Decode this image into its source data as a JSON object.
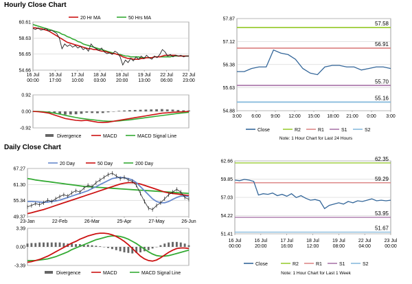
{
  "sections": {
    "hourly_title": "Hourly Close Chart",
    "daily_title": "Daily Close Chart"
  },
  "colors": {
    "close": "#2f4f6f",
    "ma_short": "#cc1111",
    "ma_long": "#33aa33",
    "macd": "#cc1111",
    "signal": "#33aa33",
    "divergence": "#666666",
    "r2": "#99cc33",
    "r1": "#dd8888",
    "s1": "#aa77aa",
    "s2": "#88bbdd",
    "line_blue": "#336699",
    "ma_mid": "#6688cc",
    "grid": "#d0d0d0",
    "frame": "#888888"
  },
  "chart_data": [
    {
      "id": "hourly_price",
      "type": "line",
      "legend": [
        "20 Hr MA",
        "50 Hrs MA"
      ],
      "y_ticks": [
        "60.61",
        "58.63",
        "56.65",
        "54.66"
      ],
      "ylim": [
        54.66,
        60.61
      ],
      "x_ticks": [
        "16 Jul\n00:00",
        "16 Jul\n17:00",
        "17 Jul\n10:00",
        "18 Jul\n03:00",
        "18 Jul\n20:00",
        "19 Jul\n13:00",
        "22 Jul\n06:00",
        "22 Jul\n23:00"
      ],
      "series": [
        {
          "name": "Close",
          "values": [
            59.8,
            59.7,
            59.9,
            59.6,
            59.7,
            59.8,
            59.5,
            59.6,
            59.4,
            59.2,
            58.6,
            57.3,
            57.9,
            57.6,
            57.8,
            57.5,
            57.7,
            57.4,
            57.6,
            57.2,
            57.4,
            57.0,
            57.9,
            57.5,
            57.3,
            57.1,
            57.4,
            56.9,
            56.7,
            56.8,
            56.6,
            57.0,
            56.8,
            56.3,
            55.3,
            55.9,
            55.6,
            56.1,
            55.8,
            56.3,
            56.0,
            56.4,
            56.1,
            56.5,
            56.2,
            56.0,
            56.4,
            56.2,
            56.6,
            57.2,
            56.9,
            56.4,
            56.6,
            56.3,
            56.5,
            56.4,
            56.5,
            56.3,
            56.4,
            56.4
          ]
        },
        {
          "name": "20 Hr MA",
          "values": [
            59.9,
            59.9,
            59.8,
            59.8,
            59.7,
            59.6,
            59.5,
            59.3,
            59.1,
            58.9,
            58.7,
            58.5,
            58.3,
            58.1,
            58.0,
            57.9,
            57.8,
            57.7,
            57.6,
            57.5,
            57.4,
            57.3,
            57.3,
            57.2,
            57.2,
            57.1,
            57.0,
            57.0,
            56.9,
            56.8,
            56.7,
            56.7,
            56.6,
            56.5,
            56.3,
            56.2,
            56.1,
            56.1,
            56.0,
            56.0,
            56.0,
            56.1,
            56.1,
            56.2,
            56.2,
            56.2,
            56.3,
            56.3,
            56.3,
            56.4,
            56.5,
            56.5,
            56.5,
            56.5,
            56.5,
            56.4,
            56.4,
            56.4,
            56.4,
            56.4
          ]
        },
        {
          "name": "50 Hrs MA",
          "values": [
            60.3,
            60.2,
            60.1,
            60.0,
            59.9,
            59.8,
            59.7,
            59.6,
            59.5,
            59.4,
            59.3,
            59.1,
            59.0,
            58.8,
            58.7,
            58.5,
            58.4,
            58.2,
            58.1,
            57.9,
            57.8,
            57.7,
            57.6,
            57.5,
            57.4,
            57.3,
            57.2,
            57.1,
            57.0,
            56.9,
            56.8,
            56.7,
            56.6,
            56.6,
            56.5,
            56.4,
            56.4,
            56.3,
            56.3,
            56.3,
            56.3,
            56.2,
            56.2,
            56.2,
            56.2,
            56.2,
            56.3,
            56.3,
            56.3,
            56.3,
            56.3,
            56.3,
            56.3,
            56.4,
            56.4,
            56.4,
            56.4,
            56.4,
            56.4,
            56.4
          ]
        }
      ]
    },
    {
      "id": "hourly_macd",
      "type": "line",
      "legend": [
        "Divergence",
        "MACD",
        "MACD Signal Line"
      ],
      "y_ticks": [
        "0.92",
        "0.00",
        "-0.92"
      ],
      "ylim": [
        -0.92,
        0.92
      ],
      "series": [
        {
          "name": "MACD",
          "values": [
            0.0,
            -0.02,
            -0.05,
            -0.1,
            -0.2,
            -0.3,
            -0.4,
            -0.45,
            -0.5,
            -0.52,
            -0.5,
            -0.55,
            -0.6,
            -0.62,
            -0.6,
            -0.55,
            -0.5,
            -0.45,
            -0.4,
            -0.35,
            -0.3,
            -0.25,
            -0.2,
            -0.15,
            -0.1,
            -0.08,
            -0.05,
            -0.03,
            -0.02,
            0.0
          ]
        },
        {
          "name": "MACD Signal Line",
          "values": [
            0.0,
            0.0,
            -0.02,
            -0.05,
            -0.1,
            -0.15,
            -0.22,
            -0.28,
            -0.34,
            -0.39,
            -0.43,
            -0.46,
            -0.5,
            -0.53,
            -0.55,
            -0.55,
            -0.53,
            -0.5,
            -0.47,
            -0.43,
            -0.39,
            -0.35,
            -0.31,
            -0.27,
            -0.23,
            -0.19,
            -0.15,
            -0.11,
            -0.08,
            -0.05
          ]
        },
        {
          "name": "Divergence",
          "values": [
            0.0,
            -0.02,
            -0.03,
            -0.05,
            -0.1,
            -0.15,
            -0.18,
            -0.17,
            -0.16,
            -0.13,
            -0.07,
            -0.09,
            -0.1,
            -0.09,
            -0.05,
            0.0,
            0.03,
            0.05,
            0.07,
            0.08,
            0.09,
            0.1,
            0.11,
            0.12,
            0.13,
            0.11,
            0.1,
            0.08,
            0.06,
            0.05
          ]
        }
      ]
    },
    {
      "id": "hourly_pivot",
      "type": "line",
      "y_ticks": [
        "57.87",
        "57.12",
        "56.38",
        "55.63",
        "54.88"
      ],
      "ylim": [
        54.88,
        57.87
      ],
      "x_ticks": [
        "3:00",
        "6:00",
        "9:00",
        "12:00",
        "15:00",
        "18:00",
        "21:00",
        "0:00",
        "3:00"
      ],
      "levels": [
        {
          "name": "R2",
          "value": 57.58,
          "label": "57.58"
        },
        {
          "name": "R1",
          "value": 56.91,
          "label": "56.91"
        },
        {
          "name": "S1",
          "value": 55.7,
          "label": "55.70"
        },
        {
          "name": "S2",
          "value": 55.16,
          "label": "55.16"
        }
      ],
      "series": [
        {
          "name": "Close",
          "values": [
            56.15,
            56.15,
            56.25,
            56.3,
            56.3,
            56.85,
            56.75,
            56.7,
            56.55,
            56.25,
            56.1,
            56.05,
            56.3,
            56.35,
            56.35,
            56.3,
            56.3,
            56.2,
            56.25,
            56.3,
            56.3,
            56.25
          ]
        }
      ],
      "legend": [
        "Close",
        "R2",
        "R1",
        "S1",
        "S2"
      ],
      "note": "Note: 1 Hour Chart for Last 24 Hours"
    },
    {
      "id": "daily_price",
      "type": "line",
      "legend": [
        "20 Day",
        "50 Day",
        "200 Day"
      ],
      "y_ticks": [
        "67.27",
        "61.30",
        "55.34",
        "49.37"
      ],
      "ylim": [
        49.37,
        67.27
      ],
      "x_ticks": [
        "23-Jan",
        "22-Feb",
        "26-Mar",
        "25-Apr",
        "27-May",
        "26-Jun"
      ],
      "series": [
        {
          "name": "Close",
          "values": [
            53.0,
            53.5,
            54.2,
            53.8,
            54.5,
            55.5,
            55.0,
            56.0,
            56.8,
            57.5,
            57.0,
            58.2,
            59.0,
            58.5,
            60.0,
            61.0,
            60.5,
            62.0,
            63.0,
            64.0,
            65.0,
            65.5,
            64.5,
            63.5,
            64.0,
            63.0,
            62.5,
            61.0,
            58.0,
            55.0,
            52.5,
            52.0,
            53.5,
            54.5,
            56.0,
            57.5,
            58.5,
            59.5,
            58.5,
            56.5,
            55.8
          ]
        },
        {
          "name": "20 Day",
          "values": [
            55.0,
            55.0,
            54.9,
            54.8,
            54.7,
            54.8,
            55.0,
            55.2,
            55.5,
            56.0,
            56.5,
            57.0,
            57.5,
            58.0,
            58.5,
            59.0,
            59.8,
            60.5,
            61.3,
            62.0,
            62.8,
            63.5,
            63.8,
            64.0,
            63.8,
            63.5,
            63.0,
            62.0,
            60.5,
            59.0,
            57.5,
            56.0,
            55.0,
            54.5,
            54.5,
            55.0,
            55.8,
            56.5,
            57.0,
            57.0,
            56.8
          ]
        },
        {
          "name": "50 Day",
          "values": [
            50.5,
            50.8,
            51.2,
            51.6,
            52.0,
            52.5,
            53.0,
            53.5,
            54.0,
            54.5,
            55.0,
            55.5,
            56.0,
            56.5,
            57.0,
            57.5,
            58.0,
            58.5,
            59.0,
            59.5,
            60.0,
            60.5,
            61.0,
            61.5,
            61.8,
            62.0,
            62.0,
            61.8,
            61.5,
            61.0,
            60.5,
            60.0,
            59.5,
            59.0,
            58.5,
            58.2,
            58.0,
            57.8,
            57.6,
            57.4,
            57.2
          ]
        },
        {
          "name": "200 Day",
          "values": [
            63.5,
            63.3,
            63.0,
            62.8,
            62.6,
            62.4,
            62.2,
            62.0,
            61.8,
            61.6,
            61.4,
            61.2,
            61.0,
            60.8,
            60.6,
            60.5,
            60.4,
            60.3,
            60.2,
            60.1,
            60.0,
            59.9,
            59.8,
            59.7,
            59.6,
            59.5,
            59.4,
            59.3,
            59.2,
            59.1,
            59.0,
            58.9,
            58.8,
            58.7,
            58.6,
            58.5,
            58.4,
            58.3,
            58.2,
            58.1,
            58.0
          ]
        }
      ]
    },
    {
      "id": "daily_macd",
      "type": "line",
      "legend": [
        "Divergence",
        "MACD",
        "MACD Signal Line"
      ],
      "y_ticks": [
        "3.39",
        "0.00",
        "-3.39"
      ],
      "ylim": [
        -3.39,
        3.39
      ],
      "series": [
        {
          "name": "MACD",
          "values": [
            -2.8,
            -2.7,
            -2.5,
            -2.3,
            -2.0,
            -1.7,
            -1.3,
            -0.9,
            -0.5,
            -0.1,
            0.3,
            0.7,
            1.0,
            1.4,
            1.7,
            2.0,
            2.2,
            2.4,
            2.5,
            2.5,
            2.4,
            2.2,
            1.9,
            1.5,
            1.0,
            0.4,
            -0.3,
            -1.0,
            -1.7,
            -2.2,
            -2.5,
            -2.6,
            -2.4,
            -2.0,
            -1.5,
            -1.0,
            -0.6,
            -0.3,
            -0.2,
            -0.2,
            -0.3
          ]
        },
        {
          "name": "MACD Signal Line",
          "values": [
            -2.5,
            -2.5,
            -2.5,
            -2.4,
            -2.3,
            -2.2,
            -2.0,
            -1.8,
            -1.5,
            -1.2,
            -0.9,
            -0.5,
            -0.2,
            0.1,
            0.4,
            0.7,
            1.0,
            1.3,
            1.5,
            1.7,
            1.9,
            2.0,
            2.0,
            1.9,
            1.7,
            1.4,
            1.0,
            0.6,
            0.1,
            -0.4,
            -0.9,
            -1.3,
            -1.6,
            -1.7,
            -1.7,
            -1.6,
            -1.4,
            -1.2,
            -1.0,
            -0.8,
            -0.6
          ]
        },
        {
          "name": "Divergence",
          "values": [
            0.6,
            0.7,
            0.7,
            0.8,
            0.8,
            0.8,
            0.8,
            0.8,
            0.8,
            0.7,
            0.6,
            0.6,
            0.5,
            0.5,
            0.4,
            0.4,
            0.3,
            0.2,
            0.1,
            0.0,
            -0.2,
            -0.4,
            -0.6,
            -0.8,
            -1.0,
            -1.1,
            -1.2,
            -1.1,
            -1.0,
            -0.8,
            -0.6,
            -0.3,
            0.0,
            0.3,
            0.6,
            0.8,
            0.9,
            0.9,
            0.8,
            0.6,
            0.3
          ]
        }
      ]
    },
    {
      "id": "daily_pivot",
      "type": "line",
      "y_ticks": [
        "62.66",
        "59.85",
        "57.03",
        "54.22",
        "51.41"
      ],
      "ylim": [
        51.41,
        62.66
      ],
      "x_ticks": [
        "16 Jul\n00:00",
        "16 Jul\n20:00",
        "17 Jul\n16:00",
        "18 Jul\n12:00",
        "19 Jul\n08:00",
        "22 Jul\n04:00",
        "23 Jul\n00:00"
      ],
      "levels": [
        {
          "name": "R2",
          "value": 62.35,
          "label": "62.35"
        },
        {
          "name": "R1",
          "value": 59.29,
          "label": "59.29"
        },
        {
          "name": "S1",
          "value": 53.95,
          "label": "53.95"
        },
        {
          "name": "S2",
          "value": 51.67,
          "label": "51.67"
        }
      ],
      "series": [
        {
          "name": "Close",
          "values": [
            59.7,
            59.6,
            59.8,
            59.7,
            59.5,
            57.4,
            57.6,
            57.5,
            57.7,
            57.3,
            57.5,
            57.2,
            57.6,
            57.0,
            57.3,
            56.9,
            56.6,
            56.7,
            56.5,
            55.3,
            55.8,
            56.0,
            56.2,
            56.0,
            56.4,
            56.2,
            56.5,
            56.4,
            56.6,
            56.8,
            56.5,
            56.6,
            56.5,
            56.6
          ]
        }
      ],
      "legend": [
        "Close",
        "R2",
        "R1",
        "S1",
        "S2"
      ],
      "note": "Note: 1 Hour Chart for Last 1 Week"
    }
  ]
}
